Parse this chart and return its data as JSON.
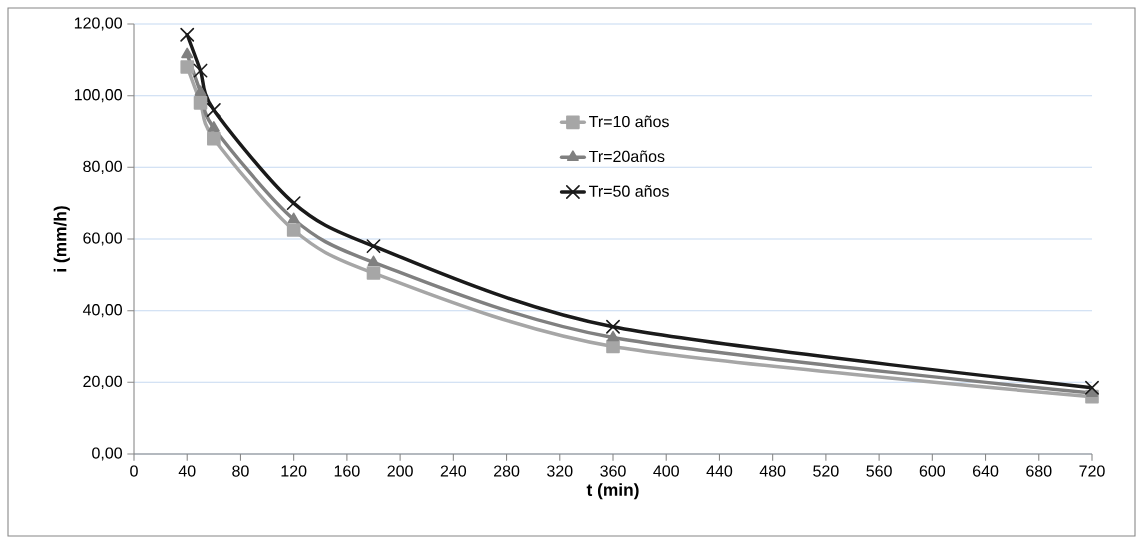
{
  "chart_data": {
    "type": "line",
    "xlabel": "t (min)",
    "ylabel": "i (mm/h)",
    "x": [
      40,
      50,
      60,
      120,
      180,
      360,
      720
    ],
    "series": [
      {
        "name": "Tr=10 años",
        "color": "#a6a6a6",
        "marker": "square",
        "values": [
          108,
          98,
          88,
          62.5,
          50.5,
          30,
          16
        ]
      },
      {
        "name": "Tr=20años",
        "color": "#808080",
        "marker": "triangle",
        "values": [
          111.5,
          101,
          91,
          65.5,
          53.5,
          32.5,
          17
        ]
      },
      {
        "name": "Tr=50 años",
        "color": "#1a1a1a",
        "marker": "cross",
        "values": [
          117,
          107,
          96,
          70,
          58,
          35.5,
          18.5
        ]
      }
    ],
    "xlim": [
      0,
      720
    ],
    "xticks": [
      0,
      40,
      80,
      120,
      160,
      200,
      240,
      280,
      320,
      360,
      400,
      440,
      480,
      520,
      560,
      600,
      640,
      680,
      720
    ],
    "ylim": [
      0,
      120
    ],
    "yticks": [
      {
        "value": 0,
        "label": "0,00"
      },
      {
        "value": 20,
        "label": "20,00"
      },
      {
        "value": 40,
        "label": "40,00"
      },
      {
        "value": 60,
        "label": "60,00"
      },
      {
        "value": 80,
        "label": "80,00"
      },
      {
        "value": 100,
        "label": "100,00"
      },
      {
        "value": 120,
        "label": "120,00"
      }
    ],
    "grid": "y",
    "legend": "top",
    "line_style": "solid"
  }
}
